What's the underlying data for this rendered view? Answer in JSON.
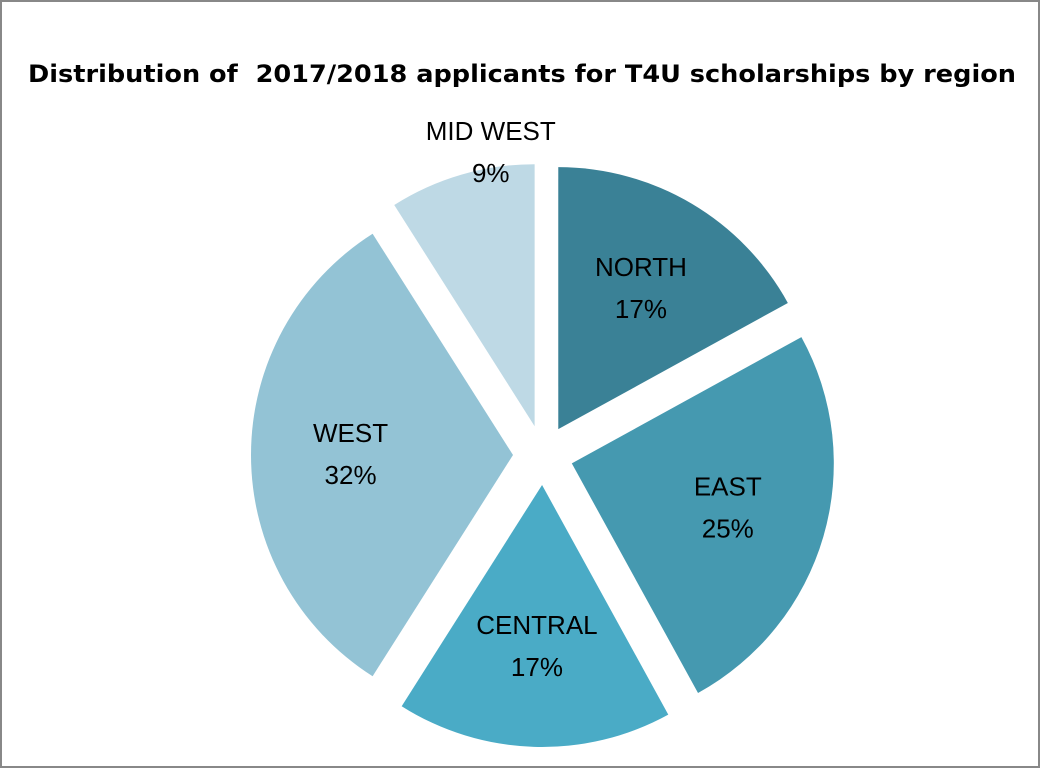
{
  "chart_data": {
    "type": "pie",
    "title": "Distribution of  2017/2018 applicants for T4U scholarships by region",
    "categories": [
      "NORTH",
      "EAST",
      "CENTRAL",
      "WEST",
      "MID WEST"
    ],
    "values": [
      17,
      25,
      17,
      32,
      9
    ],
    "value_labels": [
      "17%",
      "25%",
      "17%",
      "32%",
      "9%"
    ],
    "colors": [
      "#3a8196",
      "#4599b0",
      "#4aabc6",
      "#93c3d5",
      "#bed9e5"
    ]
  }
}
